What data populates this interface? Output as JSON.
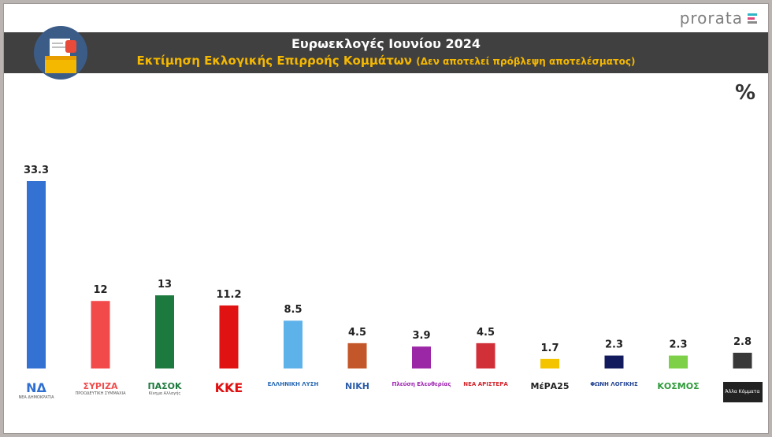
{
  "brand": {
    "name": "prorata"
  },
  "header": {
    "title": "Ευρωεκλογές Ιουνίου 2024",
    "subtitle": "Εκτίμηση Εκλογικής Επιρροής Κομμάτων",
    "note": "(Δεν αποτελεί πρόβλεψη αποτελέσματος)",
    "icon": "ballot-box-icon"
  },
  "unit_symbol": "%",
  "colors": {
    "header_bg": "#404040",
    "subtitle": "#f5b800"
  },
  "parties": [
    {
      "label": "ΝΔ",
      "sub": "ΝΕΑ ΔΗΜΟΚΡΑΤΙΑ",
      "color": "#2f6fd1"
    },
    {
      "label": "ΣΥΡΙΖΑ",
      "sub": "ΠΡΟΟΔΕΥΤΙΚΗ ΣΥΜΜΑΧΙΑ",
      "color": "#f04d4d"
    },
    {
      "label": "ΠΑΣΟΚ",
      "sub": "Κίνημα Αλλαγής",
      "color": "#1f7a3f"
    },
    {
      "label": "ΚΚΕ",
      "sub": "",
      "color": "#e01010"
    },
    {
      "label": "ΕΛΛΗΝΙΚΗ ΛΥΣΗ",
      "sub": "",
      "color": "#2767b3"
    },
    {
      "label": "ΝΙΚΗ",
      "sub": "",
      "color": "#2d5ea8"
    },
    {
      "label": "Πλεύση Ελευθερίας",
      "sub": "",
      "color": "#9b1fae"
    },
    {
      "label": "ΝΕΑ ΑΡΙΣΤΕΡΑ",
      "sub": "",
      "color": "#d2232a"
    },
    {
      "label": "ΜέΡΑ25",
      "sub": "",
      "color": "#222222"
    },
    {
      "label": "ΦΩΝΗ ΛΟΓΙΚΗΣ",
      "sub": "",
      "color": "#1d3f8f"
    },
    {
      "label": "ΚΟΣΜΟΣ",
      "sub": "",
      "color": "#2e9b3a"
    },
    {
      "label": "Άλλα Κόμματα",
      "sub": "",
      "color": "#ffffff"
    }
  ],
  "chart_data": {
    "type": "bar",
    "categories": [
      "ΝΔ",
      "ΣΥΡΙΖΑ",
      "ΠΑΣΟΚ",
      "ΚΚΕ",
      "ΕΛΛΗΝΙΚΗ ΛΥΣΗ",
      "ΝΙΚΗ",
      "Πλεύση Ελευθερίας",
      "ΝΕΑ ΑΡΙΣΤΕΡΑ",
      "ΜέΡΑ25",
      "ΦΩΝΗ ΛΟΓΙΚΗΣ",
      "ΚΟΣΜΟΣ",
      "Άλλα Κόμματα"
    ],
    "values": [
      33.3,
      12,
      13,
      11.2,
      8.5,
      4.5,
      3.9,
      4.5,
      1.7,
      2.3,
      2.3,
      2.8
    ],
    "value_labels": [
      "33.3",
      "12",
      "13",
      "11.2",
      "8.5",
      "4.5",
      "3.9",
      "4.5",
      "1.7",
      "2.3",
      "2.3",
      "2.8"
    ],
    "bar_colors": [
      "#3371d3",
      "#f24a4a",
      "#1d7a3e",
      "#e01212",
      "#5eb2ea",
      "#c4572a",
      "#9c27a6",
      "#d23039",
      "#f5c400",
      "#111a5c",
      "#7dd047",
      "#383838"
    ],
    "ylim": [
      0,
      35
    ],
    "grid": false,
    "legend": "none"
  }
}
